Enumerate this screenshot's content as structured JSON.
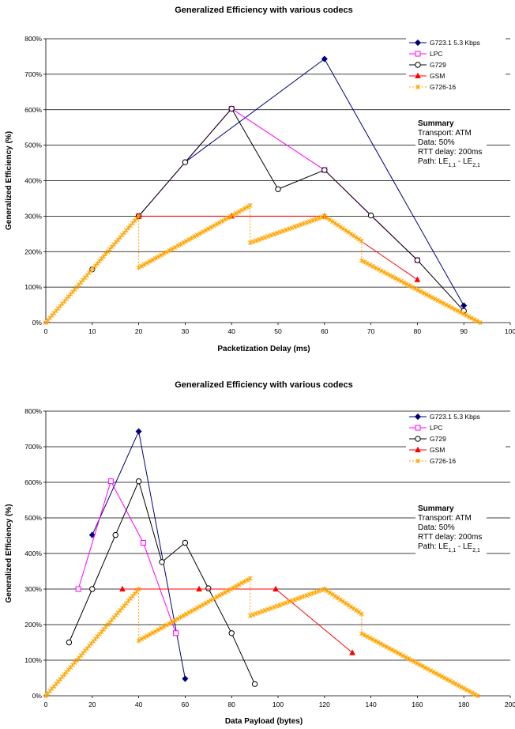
{
  "chart_data": [
    {
      "type": "line",
      "title": "Generalized Efficiency with various codecs",
      "xlabel": "Packetization Delay (ms)",
      "ylabel": "Generalized Efficiency (%)",
      "xlim": [
        0,
        100
      ],
      "ylim": [
        0,
        800
      ],
      "xticks": [
        "0",
        "10",
        "20",
        "30",
        "40",
        "50",
        "60",
        "70",
        "80",
        "90",
        "100"
      ],
      "yticks": [
        "0%",
        "100%",
        "200%",
        "300%",
        "400%",
        "500%",
        "600%",
        "700%",
        "800%"
      ],
      "grid": "horizontal",
      "legend": "top-right",
      "series": [
        {
          "name": "G723.1 5.3 Kbps",
          "color": "#00007f",
          "marker": "diamond",
          "x": [
            30,
            60,
            90
          ],
          "y": [
            452,
            743,
            48
          ]
        },
        {
          "name": "LPC",
          "color": "#ff00ff",
          "marker": "square",
          "x": [
            20,
            40,
            60,
            80
          ],
          "y": [
            300,
            603,
            430,
            176
          ]
        },
        {
          "name": "G729",
          "color": "#000000",
          "marker": "circle",
          "x": [
            10,
            20,
            30,
            40,
            50,
            60,
            70,
            80,
            90
          ],
          "y": [
            150,
            300,
            452,
            603,
            376,
            430,
            302,
            176,
            33
          ]
        },
        {
          "name": "GSM",
          "color": "#ff0000",
          "marker": "triangle",
          "x": [
            20,
            40,
            60,
            80
          ],
          "y": [
            300,
            300,
            300,
            121
          ]
        },
        {
          "name": "G726-16",
          "color": "#ffa500",
          "marker": "star",
          "dashed": true,
          "x": [
            0,
            20,
            20,
            44,
            44,
            60,
            68,
            68,
            93.5
          ],
          "y": [
            0,
            300,
            155,
            330,
            225,
            300,
            230,
            175,
            0
          ]
        }
      ],
      "summary": {
        "title": "Summary",
        "transport": "Transport: ATM",
        "data": "Data: 50%",
        "rtt": "RTT delay: 200ms",
        "path_prefix": "Path: LE",
        "path_sub1": "1,1",
        "path_mid": " - LE",
        "path_sub2": "2,1"
      }
    },
    {
      "type": "line",
      "title": "Generalized Efficiency with various codecs",
      "xlabel": "Data Payload (bytes)",
      "ylabel": "Generalized Efficiency (%)",
      "xlim": [
        0,
        200
      ],
      "ylim": [
        0,
        800
      ],
      "xticks": [
        "0",
        "20",
        "40",
        "60",
        "80",
        "100",
        "120",
        "140",
        "160",
        "180",
        "200"
      ],
      "yticks": [
        "0%",
        "100%",
        "200%",
        "300%",
        "400%",
        "500%",
        "600%",
        "700%",
        "800%"
      ],
      "grid": "horizontal",
      "legend": "top-right",
      "series": [
        {
          "name": "G723.1 5.3 Kbps",
          "color": "#00007f",
          "marker": "diamond",
          "x": [
            20,
            40,
            60
          ],
          "y": [
            452,
            743,
            48
          ]
        },
        {
          "name": "LPC",
          "color": "#ff00ff",
          "marker": "square",
          "x": [
            14,
            28,
            42,
            56
          ],
          "y": [
            300,
            603,
            430,
            176
          ]
        },
        {
          "name": "G729",
          "color": "#000000",
          "marker": "circle",
          "x": [
            10,
            20,
            30,
            40,
            50,
            60,
            70,
            80,
            90
          ],
          "y": [
            150,
            300,
            452,
            603,
            376,
            430,
            302,
            176,
            33
          ]
        },
        {
          "name": "GSM",
          "color": "#ff0000",
          "marker": "triangle",
          "x": [
            33,
            66,
            99,
            132
          ],
          "y": [
            300,
            300,
            300,
            121
          ]
        },
        {
          "name": "G726-16",
          "color": "#ffa500",
          "marker": "star",
          "dashed": true,
          "x": [
            0,
            40,
            40,
            88,
            88,
            120,
            136,
            136,
            186
          ],
          "y": [
            0,
            300,
            155,
            330,
            225,
            300,
            230,
            175,
            0
          ]
        }
      ],
      "summary": {
        "title": "Summary",
        "transport": "Transport: ATM",
        "data": "Data: 50%",
        "rtt": "RTT delay: 200ms",
        "path_prefix": "Path: LE",
        "path_sub1": "1,1",
        "path_mid": " - LE",
        "path_sub2": "2,1"
      }
    }
  ]
}
